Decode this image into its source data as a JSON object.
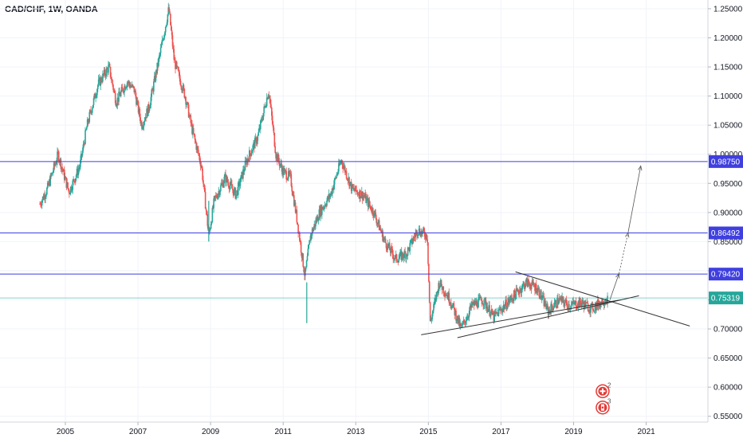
{
  "header": {
    "title": "CAD/CHF, 1W, OANDA"
  },
  "chart_data": {
    "type": "candlestick",
    "title": "CAD/CHF, 1W, OANDA",
    "xlabel": "",
    "ylabel": "",
    "xlim": [
      2003.2,
      2022.7
    ],
    "ylim": [
      0.54,
      1.265
    ],
    "x_ticks": [
      "2005",
      "2007",
      "2009",
      "2011",
      "2013",
      "2015",
      "2017",
      "2019",
      "2021"
    ],
    "y_ticks": [
      "1.25000",
      "1.20000",
      "1.15000",
      "1.10000",
      "1.05000",
      "1.00000",
      "0.95000",
      "0.90000",
      "0.85000",
      "0.80000",
      "0.75000",
      "0.70000",
      "0.65000",
      "0.60000",
      "0.55000"
    ],
    "colors": {
      "up": "#26a69a",
      "down": "#ef5350",
      "level": "#3f3fe0",
      "price": "#26a69a",
      "trend": "#333333"
    },
    "price_path": [
      [
        2004.3,
        0.915
      ],
      [
        2004.5,
        0.94
      ],
      [
        2004.8,
        1.0
      ],
      [
        2005.1,
        0.935
      ],
      [
        2005.4,
        0.98
      ],
      [
        2005.6,
        1.05
      ],
      [
        2005.9,
        1.12
      ],
      [
        2006.2,
        1.15
      ],
      [
        2006.4,
        1.09
      ],
      [
        2006.7,
        1.125
      ],
      [
        2006.9,
        1.11
      ],
      [
        2007.1,
        1.05
      ],
      [
        2007.3,
        1.08
      ],
      [
        2007.6,
        1.17
      ],
      [
        2007.85,
        1.25
      ],
      [
        2008.0,
        1.16
      ],
      [
        2008.3,
        1.1
      ],
      [
        2008.5,
        1.04
      ],
      [
        2008.75,
        0.98
      ],
      [
        2008.95,
        0.86
      ],
      [
        2009.1,
        0.92
      ],
      [
        2009.4,
        0.96
      ],
      [
        2009.7,
        0.93
      ],
      [
        2010.0,
        0.99
      ],
      [
        2010.3,
        1.03
      ],
      [
        2010.6,
        1.11
      ],
      [
        2010.8,
        1.0
      ],
      [
        2011.0,
        0.97
      ],
      [
        2011.2,
        0.96
      ],
      [
        2011.4,
        0.88
      ],
      [
        2011.6,
        0.79
      ],
      [
        2011.75,
        0.86
      ],
      [
        2012.0,
        0.9
      ],
      [
        2012.3,
        0.93
      ],
      [
        2012.6,
        0.99
      ],
      [
        2012.9,
        0.94
      ],
      [
        2013.2,
        0.93
      ],
      [
        2013.5,
        0.9
      ],
      [
        2013.8,
        0.85
      ],
      [
        2014.1,
        0.82
      ],
      [
        2014.4,
        0.83
      ],
      [
        2014.7,
        0.87
      ],
      [
        2014.97,
        0.86
      ],
      [
        2015.05,
        0.71
      ],
      [
        2015.3,
        0.78
      ],
      [
        2015.6,
        0.75
      ],
      [
        2015.9,
        0.7
      ],
      [
        2016.2,
        0.74
      ],
      [
        2016.5,
        0.75
      ],
      [
        2016.8,
        0.72
      ],
      [
        2017.1,
        0.74
      ],
      [
        2017.4,
        0.76
      ],
      [
        2017.7,
        0.78
      ],
      [
        2018.0,
        0.77
      ],
      [
        2018.3,
        0.73
      ],
      [
        2018.6,
        0.75
      ],
      [
        2018.9,
        0.74
      ],
      [
        2019.2,
        0.745
      ],
      [
        2019.5,
        0.735
      ],
      [
        2019.8,
        0.748
      ],
      [
        2019.95,
        0.753
      ]
    ],
    "spikes": [
      [
        2008.95,
        0.85
      ],
      [
        2011.65,
        0.71
      ]
    ],
    "levels": [
      {
        "value": 0.9875,
        "label": "0.98750"
      },
      {
        "value": 0.86492,
        "label": "0.86492"
      },
      {
        "value": 0.7942,
        "label": "0.79420"
      }
    ],
    "current_price": {
      "value": 0.75319,
      "label": "0.75319"
    },
    "trendlines": [
      {
        "from": [
          2014.8,
          0.69
        ],
        "to": [
          2020.3,
          0.75
        ]
      },
      {
        "from": [
          2015.8,
          0.685
        ],
        "to": [
          2020.8,
          0.757
        ]
      },
      {
        "from": [
          2017.4,
          0.798
        ],
        "to": [
          2022.2,
          0.705
        ]
      }
    ],
    "projection_arrows": [
      {
        "from": [
          2020.0,
          0.75
        ],
        "to": [
          2020.25,
          0.795
        ],
        "style": "solid"
      },
      {
        "from": [
          2020.25,
          0.795
        ],
        "to": [
          2020.5,
          0.865
        ],
        "style": "dotted"
      },
      {
        "from": [
          2020.5,
          0.865
        ],
        "to": [
          2020.85,
          0.98
        ],
        "style": "solid"
      }
    ],
    "event_markers": [
      {
        "x": 2019.8,
        "y": 0.593,
        "count": "2",
        "kind": "swiss-flag-icon"
      },
      {
        "x": 2019.8,
        "y": 0.565,
        "count": "3",
        "kind": "canada-flag-icon"
      }
    ],
    "grid": true,
    "legend": "none"
  }
}
